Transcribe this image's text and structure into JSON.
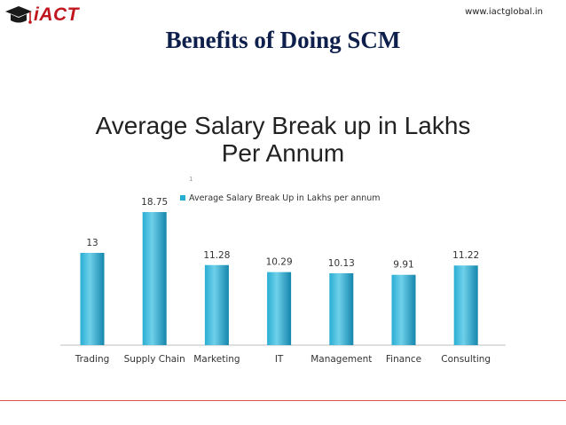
{
  "header": {
    "logo_text": "iACT",
    "website": "www.iactglobal.in"
  },
  "slide": {
    "title": "Benefits of Doing SCM",
    "subtitle_line1": "Average Salary Break up in Lakhs",
    "subtitle_line2": "Per Annum"
  },
  "colors": {
    "brand_red": "#c0171e",
    "title_navy": "#0d1f4a",
    "bar_light": "#6fd0ea",
    "bar_mid": "#29aed3",
    "bar_dark": "#1486ad",
    "divider": "#d9534f"
  },
  "icons": {
    "logo": "graduation-cap-icon"
  },
  "chart_data": {
    "type": "bar",
    "title": "",
    "xlabel": "",
    "ylabel": "",
    "legend_position": "top-left",
    "series": [
      {
        "name": "Average Salary Break Up in Lakhs per annum",
        "values": [
          13,
          18.75,
          11.28,
          10.29,
          10.13,
          9.91,
          11.22
        ]
      }
    ],
    "categories": [
      "Trading",
      "Supply Chain",
      "Marketing",
      "IT",
      "Management",
      "Finance",
      "Consulting"
    ],
    "value_labels": [
      "13",
      "18.75",
      "11.28",
      "10.29",
      "10.13",
      "9.91",
      "11.22"
    ],
    "ylim": [
      0,
      20
    ],
    "grid": false,
    "stray_label": "1"
  }
}
